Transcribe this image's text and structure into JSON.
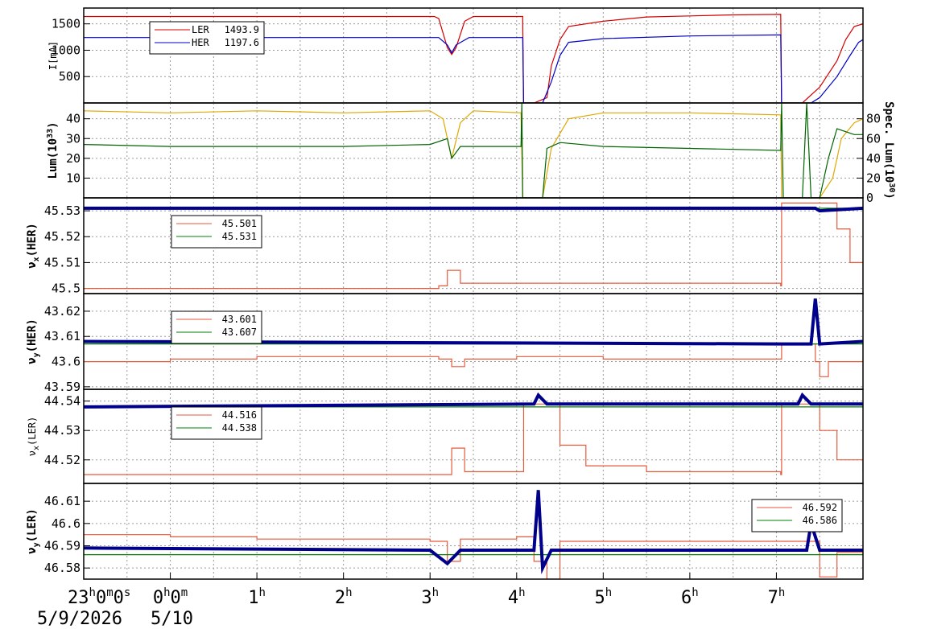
{
  "colors": {
    "ler": "#d40000",
    "her": "#0000c8",
    "lum": "#e0a800",
    "spec": "#006400",
    "tune_red": "#e65a3c",
    "tune_green": "#008000",
    "tune_blue": "#00008b",
    "grid": "#9a9a9a"
  },
  "x_axis": {
    "start_label": "23h0m0s",
    "date1": "5/9/2026",
    "date2": "5/10",
    "ticks": [
      {
        "t": 0,
        "base": "0",
        "sup": "h",
        "base2": "0",
        "sup2": "m"
      },
      {
        "t": 1,
        "base": "1",
        "sup": "h"
      },
      {
        "t": 2,
        "base": "2",
        "sup": "h"
      },
      {
        "t": 3,
        "base": "3",
        "sup": "h"
      },
      {
        "t": 4,
        "base": "4",
        "sup": "h"
      },
      {
        "t": 5,
        "base": "5",
        "sup": "h"
      },
      {
        "t": 6,
        "base": "6",
        "sup": "h"
      },
      {
        "t": 7,
        "base": "7",
        "sup": "h"
      }
    ],
    "range_hours": [
      -1,
      8
    ]
  },
  "chart_data": [
    {
      "type": "line",
      "id": "current",
      "ylabel": "I[mA]",
      "ylim": [
        0,
        1800
      ],
      "yticks": [
        "500",
        "1000",
        "1500"
      ],
      "legend": [
        {
          "name": "LER",
          "value": "1493.9",
          "color": "#d40000"
        },
        {
          "name": "HER",
          "value": "1197.6",
          "color": "#0000c8"
        }
      ],
      "series": [
        {
          "name": "LER",
          "color": "#d40000",
          "points": [
            [
              -1,
              1640
            ],
            [
              3.05,
              1640
            ],
            [
              3.1,
              1600
            ],
            [
              3.2,
              1050
            ],
            [
              3.25,
              920
            ],
            [
              3.3,
              1050
            ],
            [
              3.4,
              1550
            ],
            [
              3.5,
              1640
            ],
            [
              4.07,
              1640
            ],
            [
              4.08,
              0
            ],
            [
              4.2,
              0
            ],
            [
              4.35,
              100
            ],
            [
              4.4,
              700
            ],
            [
              4.5,
              1200
            ],
            [
              4.6,
              1450
            ],
            [
              5,
              1550
            ],
            [
              5.5,
              1630
            ],
            [
              6,
              1650
            ],
            [
              6.5,
              1670
            ],
            [
              7.05,
              1680
            ],
            [
              7.06,
              0
            ],
            [
              7.3,
              0
            ],
            [
              7.5,
              300
            ],
            [
              7.7,
              800
            ],
            [
              7.8,
              1200
            ],
            [
              7.9,
              1450
            ],
            [
              8,
              1500
            ]
          ]
        },
        {
          "name": "HER",
          "color": "#0000c8",
          "points": [
            [
              -1,
              1240
            ],
            [
              3.1,
              1240
            ],
            [
              3.2,
              1100
            ],
            [
              3.25,
              950
            ],
            [
              3.3,
              1100
            ],
            [
              3.45,
              1240
            ],
            [
              4.07,
              1240
            ],
            [
              4.08,
              0
            ],
            [
              4.3,
              0
            ],
            [
              4.4,
              400
            ],
            [
              4.5,
              900
            ],
            [
              4.6,
              1150
            ],
            [
              5,
              1220
            ],
            [
              6,
              1270
            ],
            [
              7.05,
              1290
            ],
            [
              7.06,
              0
            ],
            [
              7.4,
              0
            ],
            [
              7.5,
              100
            ],
            [
              7.7,
              500
            ],
            [
              7.85,
              900
            ],
            [
              7.95,
              1150
            ],
            [
              8,
              1200
            ]
          ]
        }
      ]
    },
    {
      "type": "line",
      "id": "lum",
      "ylabel": "Lum(10",
      "ylabel_sup": "33",
      "ylabel_end": ")",
      "ylim": [
        0,
        48
      ],
      "yticks": [
        "10",
        "20",
        "30",
        "40"
      ],
      "ylabel_right": "Spec. Lum(10",
      "ylabel_right_sup": "30",
      "ylabel_right_end": ")",
      "ylim_right": [
        0,
        96
      ],
      "yticks_right": [
        "0",
        "20",
        "40",
        "60",
        "80"
      ],
      "series": [
        {
          "name": "Lum",
          "color": "#e0a800",
          "points": [
            [
              -1,
              44
            ],
            [
              0,
              43
            ],
            [
              1,
              44
            ],
            [
              2,
              43
            ],
            [
              3,
              44
            ],
            [
              3.15,
              40
            ],
            [
              3.25,
              20
            ],
            [
              3.35,
              38
            ],
            [
              3.5,
              44
            ],
            [
              4.05,
              43
            ],
            [
              4.07,
              0
            ],
            [
              4.3,
              0
            ],
            [
              4.4,
              25
            ],
            [
              4.6,
              40
            ],
            [
              5,
              43
            ],
            [
              6,
              43
            ],
            [
              7.05,
              42
            ],
            [
              7.06,
              0
            ],
            [
              7.5,
              0
            ],
            [
              7.65,
              10
            ],
            [
              7.75,
              30
            ],
            [
              7.9,
              38
            ],
            [
              8,
              40
            ]
          ]
        },
        {
          "name": "Spec",
          "color": "#006400",
          "points": [
            [
              -1,
              27
            ],
            [
              0,
              26
            ],
            [
              1,
              26
            ],
            [
              2,
              26
            ],
            [
              3,
              27
            ],
            [
              3.2,
              30
            ],
            [
              3.25,
              20
            ],
            [
              3.35,
              26
            ],
            [
              4.05,
              26
            ],
            [
              4.06,
              48
            ],
            [
              4.07,
              0
            ],
            [
              4.3,
              0
            ],
            [
              4.35,
              25
            ],
            [
              4.5,
              28
            ],
            [
              5,
              26
            ],
            [
              6,
              25
            ],
            [
              7.05,
              24
            ],
            [
              7.06,
              48
            ],
            [
              7.08,
              0
            ],
            [
              7.3,
              0
            ],
            [
              7.35,
              48
            ],
            [
              7.4,
              0
            ],
            [
              7.5,
              0
            ],
            [
              7.6,
              20
            ],
            [
              7.7,
              35
            ],
            [
              7.9,
              32
            ],
            [
              8,
              32
            ]
          ]
        }
      ]
    },
    {
      "type": "line",
      "id": "nux_her",
      "ylabel": "ν",
      "ylabel_sub": "x",
      "ylabel_end": "(HER)",
      "ylim": [
        45.498,
        45.535
      ],
      "yticks": [
        "45.5",
        "45.51",
        "45.52",
        "45.53"
      ],
      "legend": [
        {
          "value": "45.501",
          "color": "#e65a3c"
        },
        {
          "value": "45.531",
          "color": "#008000"
        }
      ],
      "series": [
        {
          "name": "red",
          "color": "#e65a3c",
          "points": [
            [
              -1,
              45.5
            ],
            [
              3.1,
              45.501
            ],
            [
              3.2,
              45.507
            ],
            [
              3.35,
              45.502
            ],
            [
              7.05,
              45.501
            ],
            [
              7.06,
              45.533
            ],
            [
              7.5,
              45.533
            ],
            [
              7.7,
              45.523
            ],
            [
              7.85,
              45.51
            ],
            [
              8,
              45.501
            ]
          ]
        },
        {
          "name": "green",
          "color": "#008000",
          "points": [
            [
              -1,
              45.531
            ],
            [
              8,
              45.531
            ]
          ]
        },
        {
          "name": "blue",
          "color": "#00008b",
          "points": [
            [
              -1,
              45.531
            ],
            [
              7.45,
              45.531
            ],
            [
              7.5,
              45.53
            ],
            [
              8,
              45.531
            ]
          ]
        }
      ]
    },
    {
      "type": "line",
      "id": "nuy_her",
      "ylabel": "ν",
      "ylabel_sub": "y",
      "ylabel_end": "(HER)",
      "ylim": [
        43.589,
        43.627
      ],
      "yticks": [
        "43.59",
        "43.6",
        "43.61",
        "43.62"
      ],
      "legend": [
        {
          "value": "43.601",
          "color": "#e65a3c"
        },
        {
          "value": "43.607",
          "color": "#008000"
        }
      ],
      "series": [
        {
          "name": "red",
          "color": "#e65a3c",
          "points": [
            [
              -1,
              43.6
            ],
            [
              0,
              43.601
            ],
            [
              1,
              43.602
            ],
            [
              3.1,
              43.601
            ],
            [
              3.25,
              43.598
            ],
            [
              3.4,
              43.601
            ],
            [
              4,
              43.602
            ],
            [
              5,
              43.601
            ],
            [
              6,
              43.601
            ],
            [
              7.05,
              43.601
            ],
            [
              7.06,
              43.607
            ],
            [
              7.35,
              43.607
            ],
            [
              7.45,
              43.6
            ],
            [
              7.5,
              43.594
            ],
            [
              7.6,
              43.6
            ],
            [
              8,
              43.602
            ]
          ]
        },
        {
          "name": "green",
          "color": "#008000",
          "points": [
            [
              -1,
              43.607
            ],
            [
              8,
              43.607
            ]
          ]
        },
        {
          "name": "blue",
          "color": "#00008b",
          "points": [
            [
              -1,
              43.608
            ],
            [
              7.05,
              43.607
            ],
            [
              7.4,
              43.607
            ],
            [
              7.45,
              43.625
            ],
            [
              7.5,
              43.607
            ],
            [
              8,
              43.608
            ]
          ]
        }
      ]
    },
    {
      "type": "line",
      "id": "nux_ler",
      "ylabel": "ν",
      "ylabel_sub": "x",
      "ylabel_end": "(LER)",
      "ylim": [
        44.512,
        44.544
      ],
      "yticks": [
        "44.52",
        "44.53",
        "44.54"
      ],
      "legend": [
        {
          "value": "44.516",
          "color": "#e65a3c"
        },
        {
          "value": "44.538",
          "color": "#008000"
        }
      ],
      "series": [
        {
          "name": "red",
          "color": "#e65a3c",
          "points": [
            [
              -1,
              44.515
            ],
            [
              3.1,
              44.515
            ],
            [
              3.25,
              44.524
            ],
            [
              3.4,
              44.516
            ],
            [
              4.07,
              44.516
            ],
            [
              4.08,
              44.539
            ],
            [
              4.3,
              44.539
            ],
            [
              4.5,
              44.525
            ],
            [
              4.8,
              44.518
            ],
            [
              5.5,
              44.516
            ],
            [
              7.05,
              44.515
            ],
            [
              7.06,
              44.539
            ],
            [
              7.35,
              44.539
            ],
            [
              7.5,
              44.53
            ],
            [
              7.7,
              44.52
            ],
            [
              8,
              44.516
            ]
          ]
        },
        {
          "name": "green",
          "color": "#008000",
          "points": [
            [
              -1,
              44.538
            ],
            [
              8,
              44.538
            ]
          ]
        },
        {
          "name": "blue",
          "color": "#00008b",
          "points": [
            [
              -1,
              44.538
            ],
            [
              4.2,
              44.539
            ],
            [
              4.25,
              44.542
            ],
            [
              4.35,
              44.539
            ],
            [
              7.25,
              44.539
            ],
            [
              7.3,
              44.542
            ],
            [
              7.4,
              44.539
            ],
            [
              8,
              44.539
            ]
          ]
        }
      ]
    },
    {
      "type": "line",
      "id": "nuy_ler",
      "ylabel": "ν",
      "ylabel_sub": "y",
      "ylabel_end": "(LER)",
      "ylim": [
        46.575,
        46.618
      ],
      "yticks": [
        "46.58",
        "46.59",
        "46.6",
        "46.61"
      ],
      "legend": [
        {
          "value": "46.592",
          "color": "#e65a3c"
        },
        {
          "value": "46.586",
          "color": "#008000"
        }
      ],
      "series": [
        {
          "name": "red",
          "color": "#e65a3c",
          "points": [
            [
              -1,
              46.595
            ],
            [
              0,
              46.594
            ],
            [
              1,
              46.593
            ],
            [
              3,
              46.592
            ],
            [
              3.2,
              46.583
            ],
            [
              3.35,
              46.593
            ],
            [
              4,
              46.594
            ],
            [
              4.2,
              46.583
            ],
            [
              4.35,
              46.575
            ],
            [
              4.5,
              46.592
            ],
            [
              5,
              46.592
            ],
            [
              7.05,
              46.592
            ],
            [
              7.3,
              46.592
            ],
            [
              7.5,
              46.576
            ],
            [
              7.7,
              46.587
            ],
            [
              8,
              46.592
            ]
          ]
        },
        {
          "name": "green",
          "color": "#008000",
          "points": [
            [
              -1,
              46.586
            ],
            [
              8,
              46.586
            ]
          ]
        },
        {
          "name": "blue",
          "color": "#00008b",
          "points": [
            [
              -1,
              46.589
            ],
            [
              3,
              46.588
            ],
            [
              3.2,
              46.582
            ],
            [
              3.35,
              46.588
            ],
            [
              4.2,
              46.588
            ],
            [
              4.25,
              46.615
            ],
            [
              4.3,
              46.58
            ],
            [
              4.4,
              46.588
            ],
            [
              7.35,
              46.588
            ],
            [
              7.4,
              46.6
            ],
            [
              7.5,
              46.588
            ],
            [
              8,
              46.588
            ]
          ]
        }
      ]
    }
  ]
}
